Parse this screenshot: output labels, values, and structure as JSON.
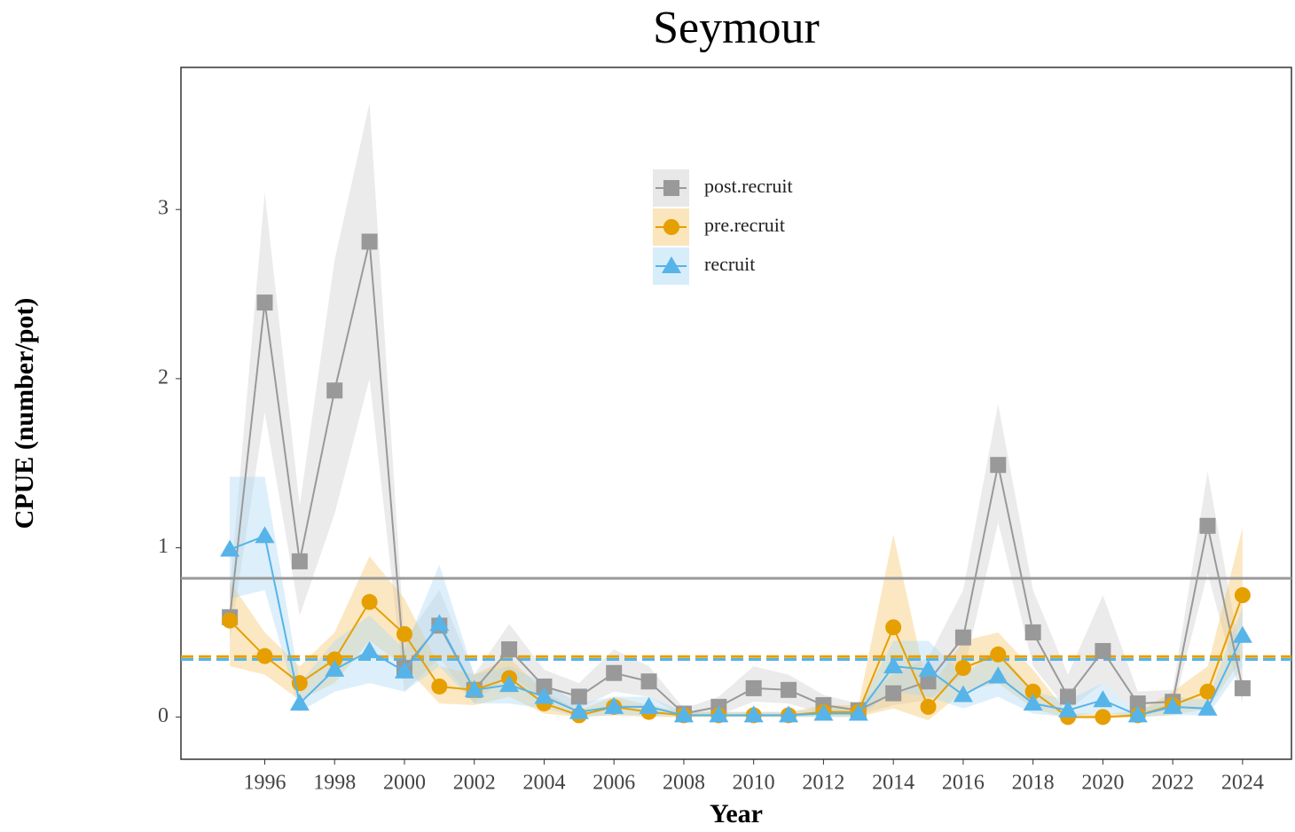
{
  "chart_data": {
    "type": "line",
    "title": "Seymour",
    "x_label": "Year",
    "y_label": "CPUE (number/pot)",
    "x": [
      1995,
      1996,
      1997,
      1998,
      1999,
      2000,
      2001,
      2002,
      2003,
      2004,
      2005,
      2006,
      2007,
      2008,
      2009,
      2010,
      2011,
      2012,
      2013,
      2014,
      2015,
      2016,
      2017,
      2018,
      2019,
      2020,
      2021,
      2022,
      2023,
      2024
    ],
    "xlim": [
      1993.6,
      2025.4
    ],
    "xticks": [
      1996,
      1998,
      2000,
      2002,
      2004,
      2006,
      2008,
      2010,
      2012,
      2014,
      2016,
      2018,
      2020,
      2022,
      2024
    ],
    "ylim": [
      -0.25,
      3.84
    ],
    "yticks": [
      0,
      1,
      2,
      3
    ],
    "grid": false,
    "legend": "top",
    "series": [
      {
        "name": "post.recruit",
        "color": "#999999",
        "band_color": "#cccccc",
        "marker": "square",
        "mean": 0.82,
        "mean_style": "solid",
        "values": [
          0.59,
          2.45,
          0.92,
          1.93,
          2.81,
          0.29,
          0.54,
          0.16,
          0.4,
          0.18,
          0.12,
          0.26,
          0.21,
          0.02,
          0.06,
          0.17,
          0.16,
          0.07,
          0.04,
          0.14,
          0.21,
          0.47,
          1.49,
          0.5,
          0.12,
          0.39,
          0.08,
          0.09,
          1.13,
          0.17
        ],
        "lower": [
          0.45,
          1.8,
          0.6,
          1.2,
          2.0,
          0.15,
          0.35,
          0.08,
          0.25,
          0.1,
          0.05,
          0.15,
          0.12,
          0,
          0.01,
          0.09,
          0.08,
          0.02,
          0.01,
          0.07,
          0.1,
          0.25,
          1.15,
          0.3,
          0.04,
          0.2,
          0.03,
          0.04,
          0.85,
          0.08
        ],
        "upper": [
          0.75,
          3.1,
          1.25,
          2.7,
          3.63,
          0.45,
          0.75,
          0.25,
          0.55,
          0.28,
          0.2,
          0.4,
          0.3,
          0.05,
          0.12,
          0.3,
          0.25,
          0.13,
          0.08,
          0.25,
          0.35,
          0.75,
          1.85,
          0.75,
          0.25,
          0.72,
          0.15,
          0.16,
          1.45,
          0.3
        ]
      },
      {
        "name": "pre.recruit",
        "color": "#e69f00",
        "band_color": "#f5c56a",
        "marker": "circle",
        "mean": 0.357,
        "mean_style": "dashed",
        "values": [
          0.57,
          0.36,
          0.2,
          0.34,
          0.68,
          0.49,
          0.18,
          0.16,
          0.23,
          0.08,
          0.01,
          0.06,
          0.03,
          0.01,
          0.01,
          0.01,
          0.01,
          0.03,
          0.03,
          0.53,
          0.06,
          0.29,
          0.37,
          0.15,
          0,
          0,
          0.01,
          0.07,
          0.15,
          0.72
        ],
        "lower": [
          0.3,
          0.25,
          0.1,
          0.2,
          0.45,
          0.3,
          0.08,
          0.07,
          0.12,
          0.02,
          0,
          0.01,
          0,
          0,
          0,
          0,
          0,
          0,
          0,
          0.05,
          -0.02,
          0.15,
          0.2,
          0.05,
          -0.01,
          -0.01,
          0,
          0.01,
          0.05,
          0.35
        ],
        "upper": [
          0.8,
          0.5,
          0.3,
          0.5,
          0.95,
          0.7,
          0.3,
          0.25,
          0.35,
          0.15,
          0.04,
          0.12,
          0.07,
          0.03,
          0.03,
          0.03,
          0.03,
          0.07,
          0.07,
          1.08,
          0.15,
          0.45,
          0.5,
          0.28,
          0.02,
          0.02,
          0.03,
          0.15,
          0.3,
          1.12
        ]
      },
      {
        "name": "recruit",
        "color": "#56b4e9",
        "band_color": "#a9d8f3",
        "marker": "triangle",
        "mean": 0.34,
        "mean_style": "dashed",
        "values": [
          0.99,
          1.07,
          0.08,
          0.28,
          0.39,
          0.27,
          0.55,
          0.16,
          0.19,
          0.12,
          0.03,
          0.06,
          0.06,
          0.01,
          0.01,
          0.01,
          0.01,
          0.02,
          0.02,
          0.3,
          0.28,
          0.13,
          0.24,
          0.08,
          0.04,
          0.1,
          0.01,
          0.06,
          0.05,
          0.48
        ],
        "lower": [
          0.7,
          0.75,
          0.03,
          0.15,
          0.2,
          0.15,
          0.3,
          0.08,
          0.08,
          0.05,
          0,
          0.01,
          0.01,
          0,
          0,
          0,
          0,
          0,
          0,
          0.15,
          0.12,
          0.05,
          0.12,
          0.02,
          0,
          0.03,
          0,
          0.01,
          0.01,
          0.3
        ],
        "upper": [
          1.42,
          1.42,
          0.2,
          0.45,
          0.6,
          0.4,
          0.9,
          0.25,
          0.3,
          0.2,
          0.08,
          0.12,
          0.12,
          0.03,
          0.03,
          0.03,
          0.03,
          0.05,
          0.05,
          0.45,
          0.45,
          0.25,
          0.4,
          0.15,
          0.1,
          0.2,
          0.03,
          0.12,
          0.1,
          0.65
        ]
      }
    ]
  }
}
